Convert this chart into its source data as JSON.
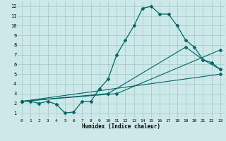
{
  "title": "",
  "xlabel": "Humidex (Indice chaleur)",
  "bg_color": "#cce8e8",
  "grid_color": "#aacccc",
  "line_color": "#006666",
  "xlim": [
    -0.5,
    23.5
  ],
  "ylim": [
    0.5,
    12.5
  ],
  "xticks": [
    0,
    1,
    2,
    3,
    4,
    5,
    6,
    7,
    8,
    9,
    10,
    11,
    12,
    13,
    14,
    15,
    16,
    17,
    18,
    19,
    20,
    21,
    22,
    23
  ],
  "yticks": [
    1,
    2,
    3,
    4,
    5,
    6,
    7,
    8,
    9,
    10,
    11,
    12
  ],
  "line1_x": [
    0,
    1,
    2,
    3,
    4,
    5,
    6,
    7,
    8,
    9,
    10,
    11,
    12,
    13,
    14,
    15,
    16,
    17,
    18,
    19,
    20,
    21,
    22,
    23
  ],
  "line1_y": [
    2.2,
    2.2,
    2.0,
    2.2,
    1.9,
    1.0,
    1.1,
    2.2,
    2.2,
    3.5,
    4.5,
    7.0,
    8.5,
    10.0,
    11.8,
    12.0,
    11.2,
    11.2,
    10.0,
    8.5,
    7.8,
    6.5,
    6.2,
    5.5
  ],
  "line2_x": [
    0,
    23
  ],
  "line2_y": [
    2.2,
    5.0
  ],
  "line3_x": [
    0,
    11,
    23
  ],
  "line3_y": [
    2.2,
    3.0,
    7.5
  ],
  "line4_x": [
    0,
    10,
    19,
    21,
    23
  ],
  "line4_y": [
    2.2,
    3.0,
    7.8,
    6.5,
    5.5
  ]
}
